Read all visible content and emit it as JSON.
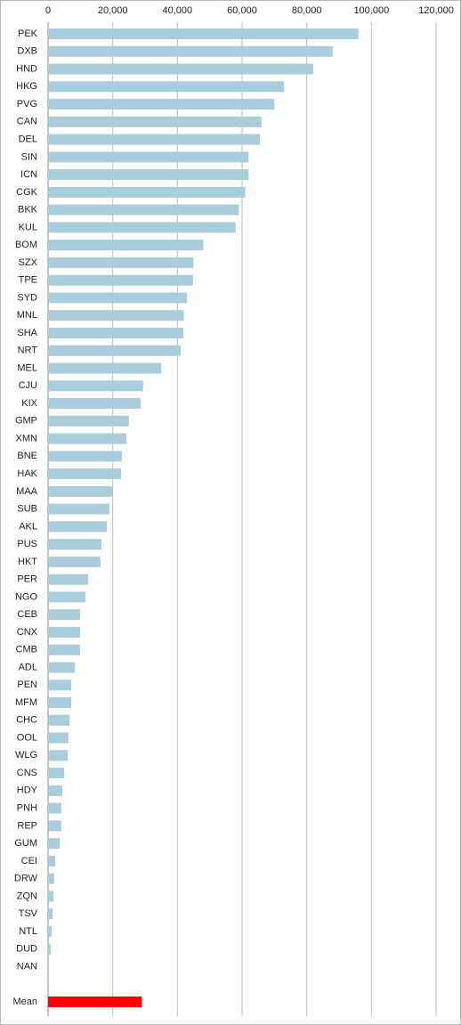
{
  "chart_data": {
    "type": "bar",
    "orientation": "horizontal",
    "categories": [
      "PEK",
      "DXB",
      "HND",
      "HKG",
      "PVG",
      "CAN",
      "DEL",
      "SIN",
      "ICN",
      "CGK",
      "BKK",
      "KUL",
      "BOM",
      "SZX",
      "TPE",
      "SYD",
      "MNL",
      "SHA",
      "NRT",
      "MEL",
      "CJU",
      "KIX",
      "GMP",
      "XMN",
      "BNE",
      "HAK",
      "MAA",
      "SUB",
      "AKL",
      "PUS",
      "HKT",
      "PER",
      "NGO",
      "CEB",
      "CNX",
      "CMB",
      "ADL",
      "PEN",
      "MFM",
      "CHC",
      "OOL",
      "WLG",
      "CNS",
      "HDY",
      "PNH",
      "REP",
      "GUM",
      "CEI",
      "DRW",
      "ZQN",
      "TSV",
      "NTL",
      "DUD",
      "NAN",
      null,
      "Mean"
    ],
    "values": [
      96000,
      88000,
      82000,
      73000,
      70000,
      66000,
      65500,
      62000,
      62000,
      61000,
      59000,
      58000,
      48000,
      45000,
      44800,
      43000,
      42000,
      41800,
      41000,
      35000,
      29400,
      28600,
      25000,
      24200,
      22800,
      22600,
      20000,
      19000,
      18200,
      16500,
      16200,
      12400,
      11600,
      9900,
      9900,
      9900,
      8300,
      7200,
      7200,
      6600,
      6300,
      6100,
      5000,
      4400,
      4100,
      4100,
      3600,
      2200,
      1900,
      1700,
      1400,
      1100,
      800,
      0,
      null,
      29000
    ],
    "colors": [
      "#a9cddb",
      "#a9cddb",
      "#a9cddb",
      "#a9cddb",
      "#a9cddb",
      "#a9cddb",
      "#a9cddb",
      "#a9cddb",
      "#a9cddb",
      "#a9cddb",
      "#a9cddb",
      "#a9cddb",
      "#a9cddb",
      "#a9cddb",
      "#a9cddb",
      "#a9cddb",
      "#a9cddb",
      "#a9cddb",
      "#a9cddb",
      "#a9cddb",
      "#a9cddb",
      "#a9cddb",
      "#a9cddb",
      "#a9cddb",
      "#a9cddb",
      "#a9cddb",
      "#a9cddb",
      "#a9cddb",
      "#a9cddb",
      "#a9cddb",
      "#a9cddb",
      "#a9cddb",
      "#a9cddb",
      "#a9cddb",
      "#a9cddb",
      "#a9cddb",
      "#a9cddb",
      "#a9cddb",
      "#a9cddb",
      "#a9cddb",
      "#a9cddb",
      "#a9cddb",
      "#a9cddb",
      "#a9cddb",
      "#a9cddb",
      "#a9cddb",
      "#a9cddb",
      "#a9cddb",
      "#a9cddb",
      "#a9cddb",
      "#a9cddb",
      "#a9cddb",
      "#a9cddb",
      "#a9cddb",
      null,
      "#ff0000"
    ],
    "xlim": [
      0,
      120000
    ],
    "xticks": [
      0,
      {
        "value": 20000,
        "label": "20,000"
      },
      {
        "value": 40000,
        "label": "40,000"
      },
      {
        "value": 60000,
        "label": "60,000"
      },
      {
        "value": 80000,
        "label": "80,000"
      },
      {
        "value": 100000,
        "label": "100,000"
      },
      {
        "value": 120000,
        "label": "120,000"
      }
    ],
    "grid": true
  }
}
